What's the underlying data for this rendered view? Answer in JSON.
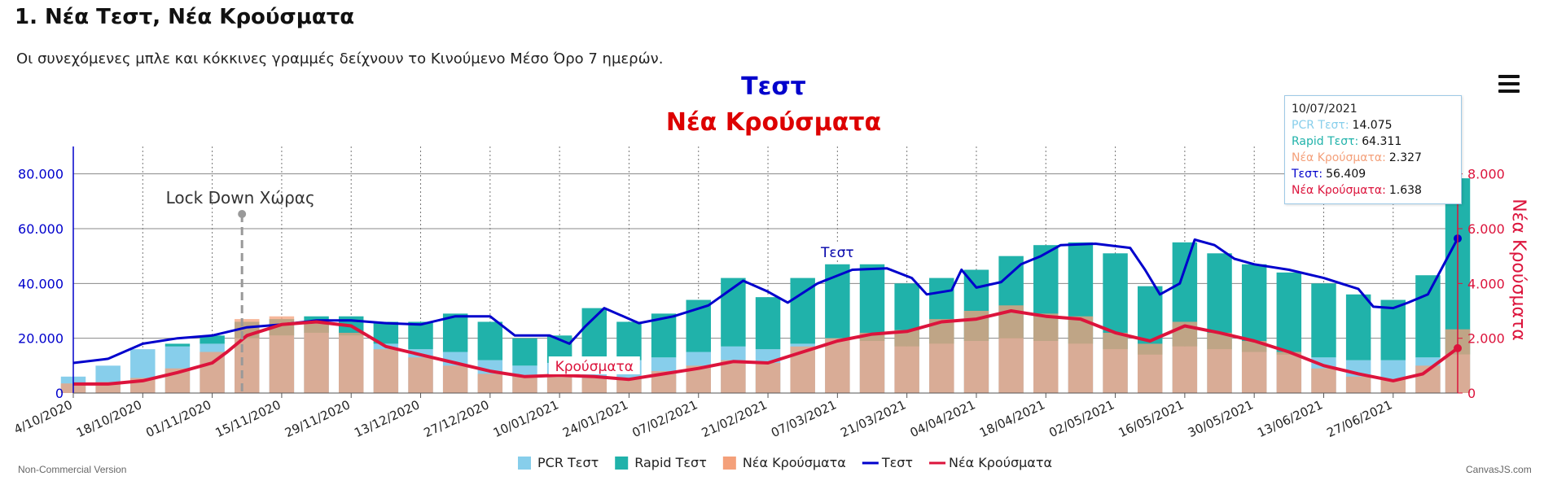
{
  "page": {
    "heading": "1. Νέα Τεστ, Νέα Κρούσματα",
    "note": "Οι συνεχόμενες μπλε και κόκκινες γραμμές δείχνουν το Κινούμενο Μέσο Όρο 7 ημερών.",
    "footer_left": "Non-Commercial Version",
    "footer_right": "CanvasJS.com",
    "menu_icon": "hamburger-menu-icon"
  },
  "tooltip": {
    "date": "10/07/2021",
    "rows": [
      {
        "label": "PCR Τεστ:",
        "value": "14.075",
        "color": "#87ceeb"
      },
      {
        "label": "Rapid Τεστ:",
        "value": "64.311",
        "color": "#20b2aa"
      },
      {
        "label": "Νέα Κρούσματα:",
        "value": "2.327",
        "color": "#f4a07a"
      },
      {
        "label": "Τεστ:",
        "value": "56.409",
        "color": "#0000cc"
      },
      {
        "label": "Νέα Κρούσματα:",
        "value": "1.638",
        "color": "#dc143c"
      }
    ]
  },
  "chart_data": {
    "type": "bar",
    "title": "Τεστ",
    "subtitle": "Νέα Κρούσματα",
    "title_color": "#0000cc",
    "subtitle_color": "#dd0000",
    "ylabel": "",
    "y2label": "Νέα Κρούσματα",
    "ylim": [
      0,
      90000
    ],
    "y2lim": [
      0,
      9000
    ],
    "yticks": [
      "0",
      "20.000",
      "40.000",
      "60.000",
      "80.000"
    ],
    "y2ticks": [
      "0",
      "2.000",
      "4.000",
      "6.000",
      "8.000"
    ],
    "xlim": [
      "2020-10-04",
      "2021-07-10"
    ],
    "xticks": [
      "4/10/2020",
      "18/10/2020",
      "01/11/2020",
      "15/11/2020",
      "29/11/2020",
      "13/12/2020",
      "27/12/2020",
      "10/01/2021",
      "24/01/2021",
      "07/02/2021",
      "21/02/2021",
      "07/03/2021",
      "21/03/2021",
      "04/04/2021",
      "18/04/2021",
      "02/05/2021",
      "16/05/2021",
      "30/05/2021",
      "13/06/2021",
      "27/06/2021"
    ],
    "grid": true,
    "legend_position": "bottom",
    "legend": [
      {
        "name": "PCR Τεστ",
        "color": "#87ceeb",
        "kind": "bar"
      },
      {
        "name": "Rapid Τεστ",
        "color": "#20b2aa",
        "kind": "bar"
      },
      {
        "name": "Νέα Κρούσματα",
        "color": "#f4a07a",
        "kind": "bar"
      },
      {
        "name": "Τεστ",
        "color": "#0000cc",
        "kind": "line"
      },
      {
        "name": "Νέα Κρούσματα",
        "color": "#dc143c",
        "kind": "line"
      }
    ],
    "annotations": [
      {
        "text": "Lock Down Χώρας",
        "date": "2020-11-07"
      },
      {
        "text": "Τεστ",
        "date": "2021-03-07",
        "series": "Τεστ"
      },
      {
        "text": "Κρούσματα",
        "date": "2021-01-17",
        "series": "Νέα Κρούσματα"
      }
    ],
    "tests_ma7": [
      [
        "2020-10-04",
        11000
      ],
      [
        "2020-10-11",
        12500
      ],
      [
        "2020-10-18",
        18000
      ],
      [
        "2020-10-25",
        20000
      ],
      [
        "2020-11-01",
        21000
      ],
      [
        "2020-11-08",
        24000
      ],
      [
        "2020-11-15",
        25000
      ],
      [
        "2020-11-22",
        26500
      ],
      [
        "2020-11-29",
        26500
      ],
      [
        "2020-12-06",
        25500
      ],
      [
        "2020-12-13",
        25000
      ],
      [
        "2020-12-20",
        28000
      ],
      [
        "2020-12-27",
        28000
      ],
      [
        "2021-01-01",
        21000
      ],
      [
        "2021-01-08",
        21000
      ],
      [
        "2021-01-12",
        18000
      ],
      [
        "2021-01-15",
        24000
      ],
      [
        "2021-01-19",
        31000
      ],
      [
        "2021-01-26",
        25500
      ],
      [
        "2021-02-02",
        28000
      ],
      [
        "2021-02-09",
        32000
      ],
      [
        "2021-02-16",
        41000
      ],
      [
        "2021-02-21",
        37000
      ],
      [
        "2021-02-25",
        33000
      ],
      [
        "2021-03-03",
        40000
      ],
      [
        "2021-03-10",
        45000
      ],
      [
        "2021-03-17",
        45500
      ],
      [
        "2021-03-22",
        42000
      ],
      [
        "2021-03-25",
        36000
      ],
      [
        "2021-03-30",
        37500
      ],
      [
        "2021-04-01",
        45000
      ],
      [
        "2021-04-04",
        38500
      ],
      [
        "2021-04-09",
        40500
      ],
      [
        "2021-04-13",
        47000
      ],
      [
        "2021-04-17",
        50000
      ],
      [
        "2021-04-21",
        54000
      ],
      [
        "2021-04-28",
        54500
      ],
      [
        "2021-05-05",
        53000
      ],
      [
        "2021-05-08",
        45000
      ],
      [
        "2021-05-11",
        36000
      ],
      [
        "2021-05-15",
        40000
      ],
      [
        "2021-05-18",
        56000
      ],
      [
        "2021-05-22",
        54000
      ],
      [
        "2021-05-26",
        49000
      ],
      [
        "2021-05-30",
        47000
      ],
      [
        "2021-06-06",
        45000
      ],
      [
        "2021-06-13",
        42000
      ],
      [
        "2021-06-20",
        38000
      ],
      [
        "2021-06-23",
        31500
      ],
      [
        "2021-06-27",
        31000
      ],
      [
        "2021-06-30",
        33000
      ],
      [
        "2021-07-04",
        36000
      ],
      [
        "2021-07-10",
        56409
      ]
    ],
    "cases_ma7": [
      [
        "2020-10-04",
        330
      ],
      [
        "2020-10-11",
        330
      ],
      [
        "2020-10-18",
        450
      ],
      [
        "2020-10-25",
        750
      ],
      [
        "2020-11-01",
        1100
      ],
      [
        "2020-11-04",
        1500
      ],
      [
        "2020-11-08",
        2100
      ],
      [
        "2020-11-15",
        2500
      ],
      [
        "2020-11-22",
        2600
      ],
      [
        "2020-11-29",
        2450
      ],
      [
        "2020-12-06",
        1700
      ],
      [
        "2020-12-13",
        1400
      ],
      [
        "2020-12-20",
        1100
      ],
      [
        "2020-12-27",
        800
      ],
      [
        "2021-01-03",
        600
      ],
      [
        "2021-01-10",
        650
      ],
      [
        "2021-01-17",
        600
      ],
      [
        "2021-01-24",
        500
      ],
      [
        "2021-01-31",
        700
      ],
      [
        "2021-02-07",
        900
      ],
      [
        "2021-02-14",
        1150
      ],
      [
        "2021-02-21",
        1100
      ],
      [
        "2021-02-28",
        1500
      ],
      [
        "2021-03-07",
        1900
      ],
      [
        "2021-03-14",
        2150
      ],
      [
        "2021-03-21",
        2250
      ],
      [
        "2021-03-28",
        2600
      ],
      [
        "2021-04-04",
        2700
      ],
      [
        "2021-04-11",
        3000
      ],
      [
        "2021-04-18",
        2800
      ],
      [
        "2021-04-25",
        2700
      ],
      [
        "2021-05-02",
        2200
      ],
      [
        "2021-05-09",
        1900
      ],
      [
        "2021-05-16",
        2450
      ],
      [
        "2021-05-23",
        2200
      ],
      [
        "2021-05-30",
        1900
      ],
      [
        "2021-06-06",
        1500
      ],
      [
        "2021-06-13",
        1000
      ],
      [
        "2021-06-20",
        700
      ],
      [
        "2021-06-27",
        450
      ],
      [
        "2021-07-03",
        700
      ],
      [
        "2021-07-10",
        1638
      ]
    ],
    "pcr_weekly": [
      [
        "2020-10-04",
        6000
      ],
      [
        "2020-10-11",
        10000
      ],
      [
        "2020-10-18",
        16000
      ],
      [
        "2020-10-25",
        17000
      ],
      [
        "2020-11-01",
        18000
      ],
      [
        "2020-11-08",
        20000
      ],
      [
        "2020-11-15",
        21000
      ],
      [
        "2020-11-22",
        22000
      ],
      [
        "2020-11-29",
        21000
      ],
      [
        "2020-12-06",
        18000
      ],
      [
        "2020-12-13",
        16000
      ],
      [
        "2020-12-20",
        15000
      ],
      [
        "2020-12-27",
        12000
      ],
      [
        "2021-01-03",
        10000
      ],
      [
        "2021-01-10",
        11000
      ],
      [
        "2021-01-17",
        13000
      ],
      [
        "2021-01-24",
        12000
      ],
      [
        "2021-01-31",
        13000
      ],
      [
        "2021-02-07",
        15000
      ],
      [
        "2021-02-14",
        17000
      ],
      [
        "2021-02-21",
        16000
      ],
      [
        "2021-02-28",
        18000
      ],
      [
        "2021-03-07",
        20000
      ],
      [
        "2021-03-14",
        19000
      ],
      [
        "2021-03-21",
        17000
      ],
      [
        "2021-03-28",
        18000
      ],
      [
        "2021-04-04",
        19000
      ],
      [
        "2021-04-11",
        20000
      ],
      [
        "2021-04-18",
        19000
      ],
      [
        "2021-04-25",
        18000
      ],
      [
        "2021-05-02",
        16000
      ],
      [
        "2021-05-09",
        14000
      ],
      [
        "2021-05-16",
        17000
      ],
      [
        "2021-05-23",
        16000
      ],
      [
        "2021-05-30",
        15000
      ],
      [
        "2021-06-06",
        14000
      ],
      [
        "2021-06-13",
        13000
      ],
      [
        "2021-06-20",
        12000
      ],
      [
        "2021-06-27",
        12000
      ],
      [
        "2021-07-04",
        13000
      ],
      [
        "2021-07-10",
        14075
      ]
    ],
    "rapid_weekly": [
      [
        "2020-10-04",
        0
      ],
      [
        "2020-10-11",
        0
      ],
      [
        "2020-10-18",
        0
      ],
      [
        "2020-10-25",
        1000
      ],
      [
        "2020-11-01",
        3000
      ],
      [
        "2020-11-08",
        6000
      ],
      [
        "2020-11-15",
        6000
      ],
      [
        "2020-11-22",
        6000
      ],
      [
        "2020-11-29",
        7000
      ],
      [
        "2020-12-06",
        8000
      ],
      [
        "2020-12-13",
        10000
      ],
      [
        "2020-12-20",
        14000
      ],
      [
        "2020-12-27",
        14000
      ],
      [
        "2021-01-03",
        10000
      ],
      [
        "2021-01-10",
        10000
      ],
      [
        "2021-01-17",
        18000
      ],
      [
        "2021-01-24",
        14000
      ],
      [
        "2021-01-31",
        16000
      ],
      [
        "2021-02-07",
        19000
      ],
      [
        "2021-02-14",
        25000
      ],
      [
        "2021-02-21",
        19000
      ],
      [
        "2021-02-28",
        24000
      ],
      [
        "2021-03-07",
        27000
      ],
      [
        "2021-03-14",
        28000
      ],
      [
        "2021-03-21",
        23000
      ],
      [
        "2021-03-28",
        24000
      ],
      [
        "2021-04-04",
        26000
      ],
      [
        "2021-04-11",
        30000
      ],
      [
        "2021-04-18",
        35000
      ],
      [
        "2021-04-25",
        37000
      ],
      [
        "2021-05-02",
        35000
      ],
      [
        "2021-05-09",
        25000
      ],
      [
        "2021-05-16",
        38000
      ],
      [
        "2021-05-23",
        35000
      ],
      [
        "2021-05-30",
        32000
      ],
      [
        "2021-06-06",
        30000
      ],
      [
        "2021-06-13",
        27000
      ],
      [
        "2021-06-20",
        24000
      ],
      [
        "2021-06-27",
        22000
      ],
      [
        "2021-07-04",
        30000
      ],
      [
        "2021-07-10",
        64311
      ]
    ],
    "cases_weekly": [
      [
        "2020-10-04",
        350
      ],
      [
        "2020-10-11",
        400
      ],
      [
        "2020-10-18",
        550
      ],
      [
        "2020-10-25",
        900
      ],
      [
        "2020-11-01",
        1500
      ],
      [
        "2020-11-08",
        2700
      ],
      [
        "2020-11-15",
        2800
      ],
      [
        "2020-11-22",
        2600
      ],
      [
        "2020-11-29",
        2200
      ],
      [
        "2020-12-06",
        1600
      ],
      [
        "2020-12-13",
        1300
      ],
      [
        "2020-12-20",
        1000
      ],
      [
        "2020-12-27",
        700
      ],
      [
        "2021-01-03",
        600
      ],
      [
        "2021-01-10",
        700
      ],
      [
        "2021-01-17",
        550
      ],
      [
        "2021-01-24",
        500
      ],
      [
        "2021-01-31",
        800
      ],
      [
        "2021-02-07",
        1000
      ],
      [
        "2021-02-14",
        1200
      ],
      [
        "2021-02-21",
        1100
      ],
      [
        "2021-02-28",
        1700
      ],
      [
        "2021-03-07",
        2000
      ],
      [
        "2021-03-14",
        2200
      ],
      [
        "2021-03-21",
        2300
      ],
      [
        "2021-03-28",
        2700
      ],
      [
        "2021-04-04",
        3000
      ],
      [
        "2021-04-11",
        3200
      ],
      [
        "2021-04-18",
        2900
      ],
      [
        "2021-04-25",
        2800
      ],
      [
        "2021-05-02",
        2200
      ],
      [
        "2021-05-09",
        1800
      ],
      [
        "2021-05-16",
        2600
      ],
      [
        "2021-05-23",
        2200
      ],
      [
        "2021-05-30",
        1900
      ],
      [
        "2021-06-06",
        1500
      ],
      [
        "2021-06-13",
        900
      ],
      [
        "2021-06-20",
        600
      ],
      [
        "2021-06-27",
        500
      ],
      [
        "2021-07-04",
        1000
      ],
      [
        "2021-07-10",
        2327
      ]
    ]
  }
}
